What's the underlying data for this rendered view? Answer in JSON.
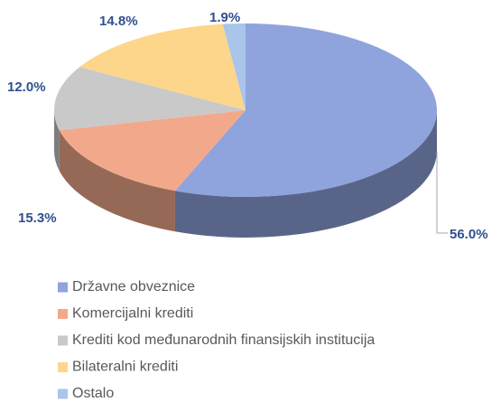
{
  "chart_data": {
    "type": "pie3d",
    "categories": [
      "Državne obveznice",
      "Komercijalni krediti",
      "Krediti kod međunarodnih finansijskih institucija",
      "Bilateralni krediti",
      "Ostalo"
    ],
    "values": [
      56.0,
      15.3,
      12.0,
      14.8,
      1.9
    ],
    "value_labels": [
      "56.0%",
      "15.3%",
      "12.0%",
      "14.8%",
      "1.9%"
    ],
    "colors": [
      "#8fa3dc",
      "#f2a98b",
      "#c9c9c9",
      "#fdd68c",
      "#a9c5ea"
    ],
    "legend": "bottom"
  }
}
